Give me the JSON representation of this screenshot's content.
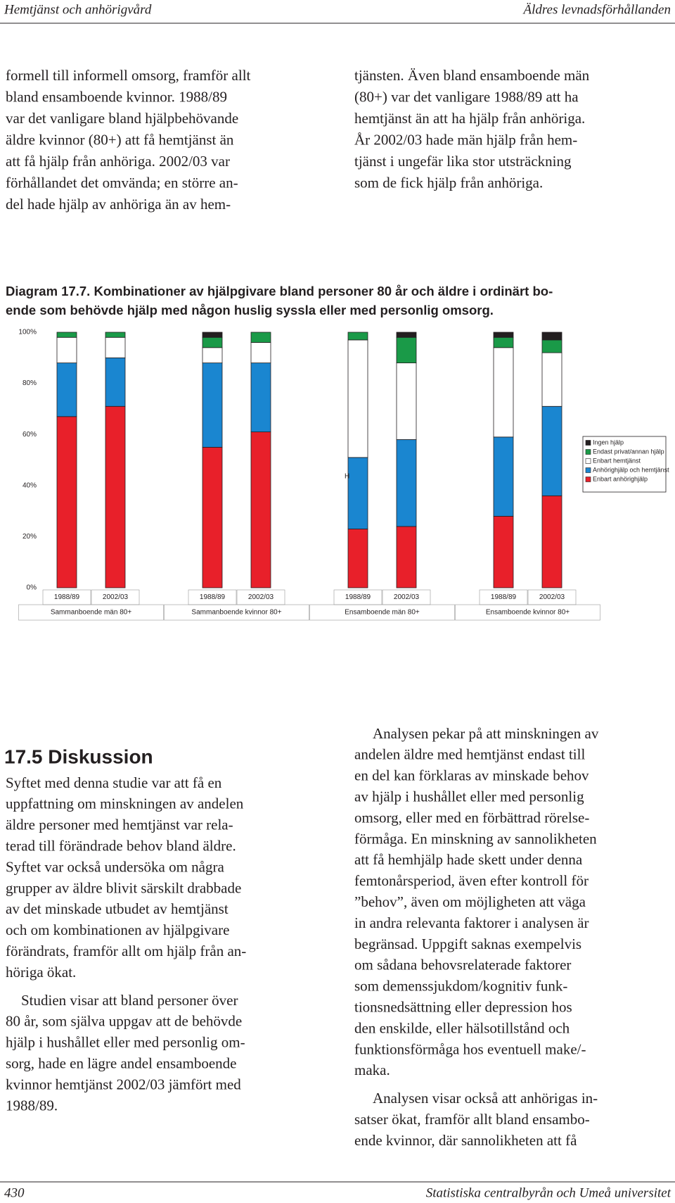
{
  "header": {
    "left": "Hemtjänst och anhörigvård",
    "right": "Äldres levnadsförhållanden"
  },
  "intro": {
    "left_lines": [
      "formell till informell omsorg, framför allt",
      "bland ensamboende kvinnor. 1988/89",
      "var det vanligare bland hjälpbehövande",
      "äldre kvinnor (80+) att få hemtjänst än",
      "att få hjälp från anhöriga. 2002/03 var",
      "förhållandet det omvända; en större an-",
      "del hade hjälp av anhöriga än av hem-"
    ],
    "right_lines": [
      "tjänsten. Även bland ensamboende män",
      "(80+) var det vanligare 1988/89 att ha",
      "hemtjänst än att ha hjälp från anhöriga.",
      "År 2002/03 hade män hjälp från hem-",
      "tjänst i ungefär lika stor utsträckning",
      "som de fick hjälp från anhöriga."
    ]
  },
  "chart_data": {
    "type": "stacked_bar",
    "title": [
      "Diagram 17.7. Kombinationer av hjälpgivare bland personer 80 år och äldre i ordinärt bo-",
      "ende som behövde hjälp med någon huslig syssla eller med personlig omsorg."
    ],
    "categories": [
      "1988/89",
      "2002/03",
      "1988/89",
      "2002/03",
      "1988/89",
      "2002/03",
      "1988/89",
      "2002/03"
    ],
    "groups": [
      "Sammanboende män 80+",
      "Sammanboende kvinnor 80+",
      "Ensamboende män 80+",
      "Ensamboende kvinnor 80+"
    ],
    "series": [
      {
        "name": "Enbart anhörighjälp",
        "color": "#e8202a",
        "values": [
          67,
          71,
          55,
          61,
          23,
          24,
          28,
          36
        ]
      },
      {
        "name": "Anhörighjälp och hemtjänst",
        "color": "#1a86d0",
        "values": [
          21,
          19,
          33,
          27,
          28,
          34,
          31,
          35
        ]
      },
      {
        "name": "Enbart hemtjänst",
        "color": "#ffffff",
        "values": [
          10,
          8,
          6,
          8,
          46,
          30,
          35,
          21
        ]
      },
      {
        "name": "Endast privat/annan hjälp",
        "color": "#1a9a48",
        "values": [
          2,
          2,
          4,
          4,
          3,
          10,
          4,
          5
        ]
      },
      {
        "name": "Ingen hjälp",
        "color": "#231f20",
        "values": [
          0,
          0,
          2,
          0,
          0,
          2,
          2,
          3
        ]
      }
    ],
    "ylim": [
      0,
      100
    ],
    "yticks": [
      {
        "value": 0,
        "label": "0%"
      },
      {
        "value": 20,
        "label": "20%"
      },
      {
        "value": 40,
        "label": "40%"
      },
      {
        "value": 60,
        "label": "60%"
      },
      {
        "value": 80,
        "label": "80%"
      },
      {
        "value": 100,
        "label": "100%"
      }
    ],
    "annotation": "H",
    "legend": "right"
  },
  "section": {
    "heading": "17.5 Diskussion",
    "left_paragraphs": [
      [
        "Syftet med denna studie var att få en",
        "uppfattning om minskningen av andelen",
        "äldre personer med hemtjänst var rela-",
        "terad till förändrade behov bland äldre.",
        "Syftet var också undersöka om några",
        "grupper av äldre blivit särskilt drabbade",
        "av det minskade utbudet av hemtjänst",
        "och om kombinationen av hjälpgivare",
        "förändrats, framför allt om hjälp från an-",
        "höriga ökat."
      ],
      [
        "Studien visar att bland personer över",
        "80 år, som själva uppgav att de behövde",
        "hjälp i hushållet eller med personlig om-",
        "sorg, hade en lägre andel ensamboende",
        "kvinnor hemtjänst 2002/03 jämfört med",
        "1988/89."
      ]
    ],
    "right_paragraphs": [
      [
        "Analysen pekar på att minskningen av",
        "andelen äldre med hemtjänst endast till",
        "en del kan förklaras av minskade behov",
        "av hjälp i hushållet eller med personlig",
        "omsorg, eller med en förbättrad rörelse-",
        "förmåga. En minskning av sannolikheten",
        "att få hemhjälp hade skett under denna",
        "femtonårsperiod, även efter kontroll för",
        "”behov”, även om möjligheten att väga",
        "in andra relevanta faktorer i analysen är",
        "begränsad. Uppgift saknas exempelvis",
        "om sådana behovsrelaterade faktorer",
        "som demenssjukdom/kognitiv funk-",
        "tionsnedsättning eller depression hos",
        "den enskilde, eller hälsotillstånd och",
        "funktionsförmåga hos eventuell make/-",
        "maka."
      ],
      [
        "Analysen visar också att anhörigas in-",
        "satser ökat, framför allt bland ensambo-",
        "ende kvinnor, där sannolikheten att få"
      ]
    ]
  },
  "footer": {
    "page": "430",
    "publisher": "Statistiska centralbyrån och Umeå universitet"
  }
}
